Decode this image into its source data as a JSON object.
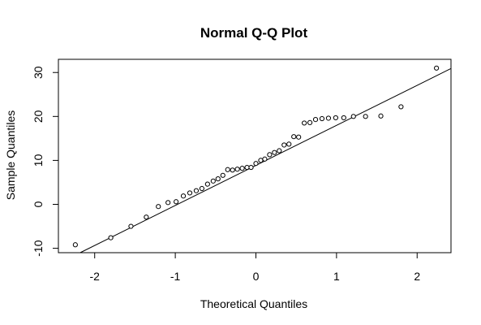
{
  "chart_data": {
    "type": "scatter",
    "title": "Normal Q-Q Plot",
    "xlabel": "Theoretical Quantiles",
    "ylabel": "Sample Quantiles",
    "xlim": [
      -2.45,
      2.42
    ],
    "ylim": [
      -11,
      33
    ],
    "x_ticks": [
      -2,
      -1,
      0,
      1,
      2
    ],
    "x_tick_labels": [
      "-2",
      "-1",
      "0",
      "1",
      "2"
    ],
    "y_ticks": [
      -10,
      0,
      10,
      20,
      30
    ],
    "y_tick_labels": [
      "-10",
      "0",
      "10",
      "20",
      "30"
    ],
    "grid": false,
    "legend": "none",
    "marker": "open-circle",
    "reference_line": {
      "type": "qqline",
      "points": [
        [
          -2.18,
          -11
        ],
        [
          2.42,
          30.9
        ]
      ]
    },
    "series": [
      {
        "x": [
          -2.24,
          -1.8,
          -1.55,
          -1.36,
          -1.21,
          -1.09,
          -0.99,
          -0.9,
          -0.82,
          -0.74,
          -0.67,
          -0.6,
          -0.53,
          -0.47,
          -0.41,
          -0.35,
          -0.29,
          -0.23,
          -0.17,
          -0.11,
          -0.06,
          0.0,
          0.06,
          0.11,
          0.17,
          0.23,
          0.29,
          0.35,
          0.41,
          0.47,
          0.53,
          0.6,
          0.67,
          0.74,
          0.82,
          0.9,
          0.99,
          1.09,
          1.21,
          1.36,
          1.55,
          1.8,
          2.24
        ],
        "y": [
          -9.2,
          -7.6,
          -5.0,
          -2.9,
          -0.5,
          0.4,
          0.6,
          1.9,
          2.6,
          3.1,
          3.6,
          4.6,
          5.3,
          5.8,
          6.6,
          7.9,
          7.8,
          8.0,
          8.2,
          8.4,
          8.4,
          9.3,
          10.0,
          10.3,
          11.3,
          11.8,
          12.2,
          13.5,
          13.7,
          15.4,
          15.3,
          18.5,
          18.6,
          19.3,
          19.5,
          19.6,
          19.7,
          19.7,
          20.0,
          20.0,
          20.1,
          22.2,
          31.0
        ]
      }
    ]
  }
}
